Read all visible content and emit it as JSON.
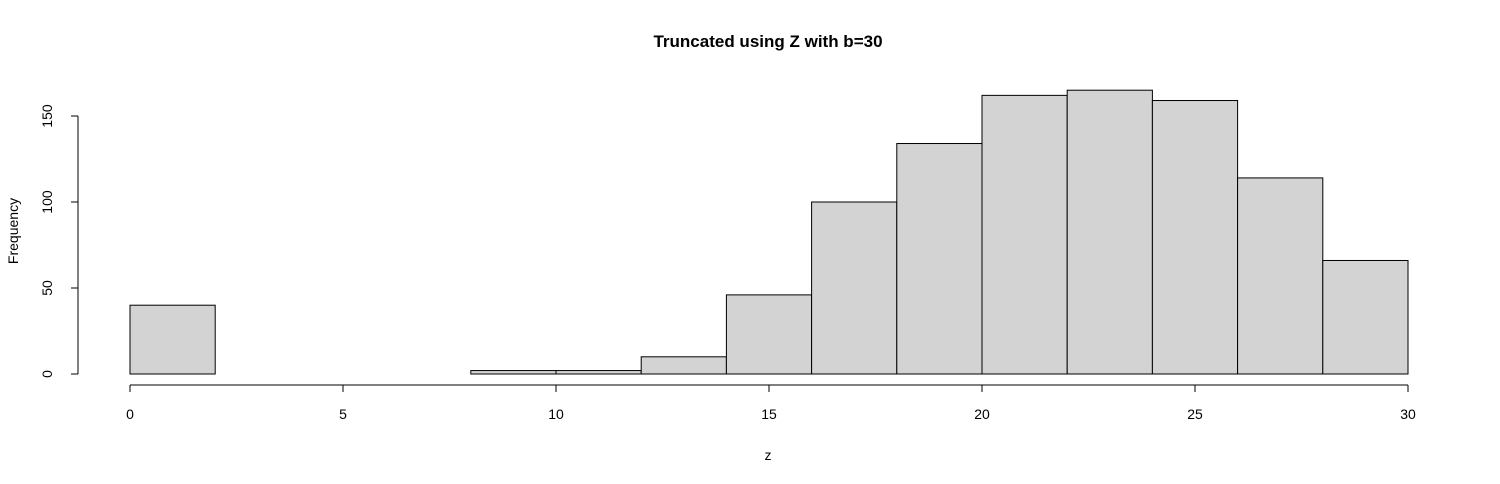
{
  "chart_data": {
    "type": "bar",
    "subtype": "histogram",
    "title": "Truncated using Z with b=30",
    "xlabel": "z",
    "ylabel": "Frequency",
    "bin_edges": [
      0,
      2,
      4,
      6,
      8,
      10,
      12,
      14,
      16,
      18,
      20,
      22,
      24,
      26,
      28,
      30
    ],
    "values": [
      40,
      0,
      0,
      0,
      2,
      2,
      10,
      46,
      100,
      134,
      162,
      165,
      159,
      114,
      66
    ],
    "xlim": [
      0,
      30
    ],
    "ylim": [
      0,
      175
    ],
    "x_ticks": [
      0,
      5,
      10,
      15,
      20,
      25,
      30
    ],
    "y_ticks": [
      0,
      50,
      100,
      150
    ],
    "grid": false,
    "colors": {
      "bar_fill": "#d3d3d3",
      "bar_stroke": "#000000"
    }
  }
}
